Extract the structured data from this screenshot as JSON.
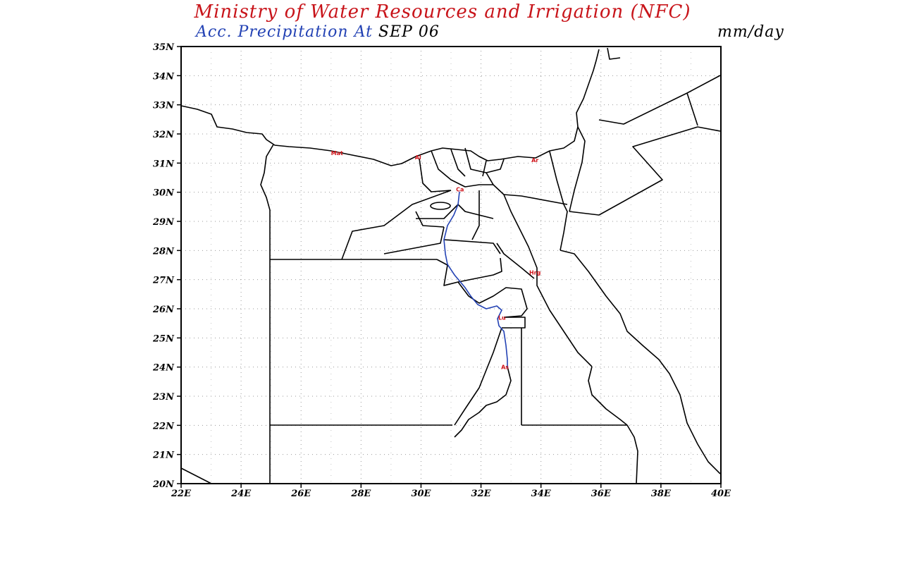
{
  "header": {
    "title": "Ministry of Water Resources and Irrigation (NFC)",
    "subtitle_prefix": "Acc. Precipitation  At",
    "date": "SEP 06",
    "unit": "mm/day"
  },
  "map": {
    "lat_labels": [
      "35N",
      "34N",
      "33N",
      "32N",
      "31N",
      "30N",
      "29N",
      "28N",
      "27N",
      "26N",
      "25N",
      "24N",
      "23N",
      "22N",
      "21N",
      "20N"
    ],
    "lon_labels": [
      "22E",
      "24E",
      "26E",
      "28E",
      "30E",
      "32E",
      "34E",
      "36E",
      "38E",
      "40E"
    ],
    "lat_range": [
      20,
      35
    ],
    "lon_range": [
      22,
      40
    ],
    "grid": true,
    "colors": {
      "title": "#c8141a",
      "subtitle": "#2342b4",
      "river": "#2342b4",
      "city": "#d0141a",
      "border": "#000000"
    },
    "cities": [
      {
        "label": "Mat",
        "lon": 27.2,
        "lat": 31.35
      },
      {
        "label": "Al",
        "lon": 29.9,
        "lat": 31.2
      },
      {
        "label": "Ar",
        "lon": 33.8,
        "lat": 31.1
      },
      {
        "label": "Ca",
        "lon": 31.3,
        "lat": 30.1
      },
      {
        "label": "Hrg",
        "lon": 33.8,
        "lat": 27.25
      },
      {
        "label": "Lu",
        "lon": 32.7,
        "lat": 25.7
      },
      {
        "label": "As",
        "lon": 32.8,
        "lat": 24.0
      }
    ]
  }
}
